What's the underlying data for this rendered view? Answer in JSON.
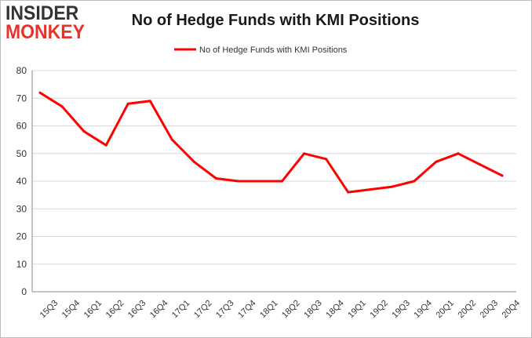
{
  "logo": {
    "line1": "INSIDER",
    "line2": "MONKEY"
  },
  "colors": {
    "series": "#ff0000",
    "grid": "#d9d9d9",
    "axis": "#888888",
    "text": "#333333"
  },
  "chart_data": {
    "type": "line",
    "title": "No of Hedge Funds with KMI Positions",
    "xlabel": "",
    "ylabel": "",
    "ylim": [
      0,
      80
    ],
    "yticks": [
      0,
      10,
      20,
      30,
      40,
      50,
      60,
      70,
      80
    ],
    "grid": true,
    "legend": "top-center",
    "categories": [
      "15Q3",
      "15Q4",
      "16Q1",
      "16Q2",
      "16Q3",
      "16Q4",
      "17Q1",
      "17Q2",
      "17Q3",
      "17Q4",
      "18Q1",
      "18Q2",
      "18Q3",
      "18Q4",
      "19Q1",
      "19Q2",
      "19Q3",
      "19Q4",
      "20Q1",
      "20Q2",
      "20Q3",
      "20Q4"
    ],
    "series": [
      {
        "name": "No of Hedge Funds with KMI Positions",
        "values": [
          72,
          67,
          58,
          53,
          68,
          69,
          55,
          47,
          41,
          40,
          40,
          40,
          50,
          48,
          36,
          37,
          38,
          40,
          47,
          50,
          46,
          42
        ]
      }
    ]
  }
}
